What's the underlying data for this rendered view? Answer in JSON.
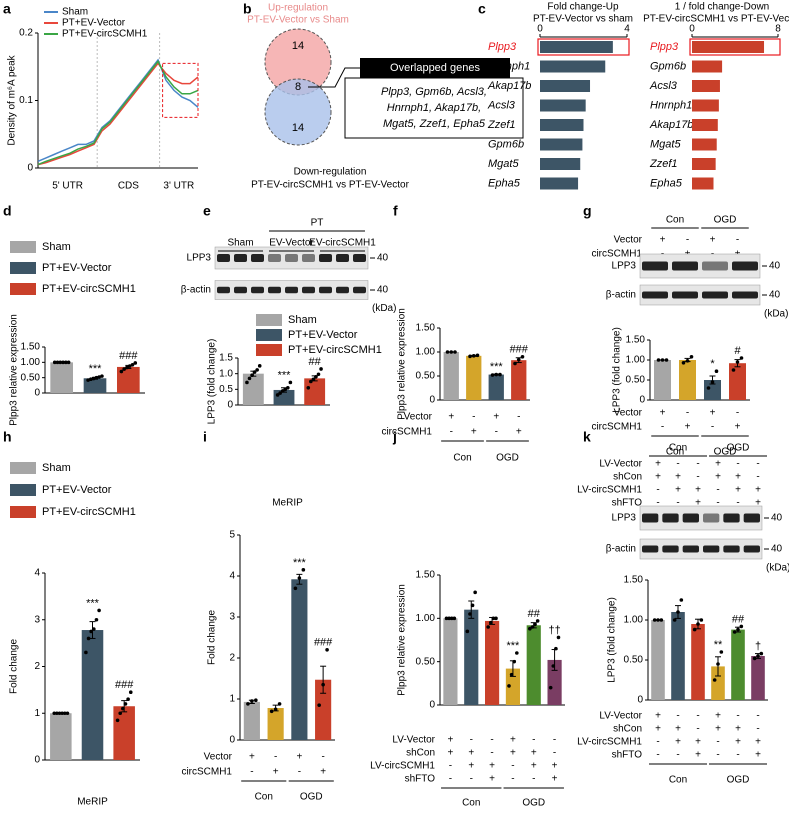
{
  "chart_data": [
    {
      "panel": "a",
      "type": "line",
      "ylabel": "Density of m⁶A peak",
      "regions": [
        "5' UTR",
        "CDS",
        "3' UTR"
      ],
      "ylim": [
        0,
        0.2
      ],
      "yticks": [
        0,
        0.1,
        0.2
      ],
      "legend": "upper left",
      "series": [
        {
          "name": "Sham",
          "color": "#4a86c8",
          "values": [
            0.01,
            0.015,
            0.02,
            0.025,
            0.03,
            0.035,
            0.035,
            0.04,
            0.06,
            0.07,
            0.085,
            0.1,
            0.115,
            0.13,
            0.145,
            0.16,
            0.13,
            0.115,
            0.105,
            0.1,
            0.09
          ]
        },
        {
          "name": "PT+EV-Vector",
          "color": "#e8473c",
          "values": [
            0.005,
            0.008,
            0.012,
            0.016,
            0.02,
            0.025,
            0.03,
            0.035,
            0.055,
            0.065,
            0.08,
            0.095,
            0.11,
            0.125,
            0.14,
            0.155,
            0.14,
            0.13,
            0.125,
            0.125,
            0.135
          ]
        },
        {
          "name": "PT+EV-circSCMH1",
          "color": "#3aa645",
          "values": [
            0.005,
            0.01,
            0.014,
            0.018,
            0.022,
            0.028,
            0.032,
            0.037,
            0.058,
            0.068,
            0.083,
            0.098,
            0.113,
            0.128,
            0.143,
            0.158,
            0.135,
            0.12,
            0.11,
            0.11,
            0.115
          ]
        }
      ]
    },
    {
      "panel": "b",
      "type": "venn",
      "sets": [
        {
          "title": "Up-regulation",
          "subtitle": "PT-EV-Vector vs Sham",
          "color": "#f4a4a4",
          "count": 14
        },
        {
          "title": "Down-regulation",
          "subtitle": "PT-EV-circSCMH1 vs PT-EV-Vector",
          "color": "#a9c0ea",
          "count": 14
        }
      ],
      "overlap": 8,
      "box_title": "Overlapped genes",
      "box_lines": [
        "Plpp3, Gpm6b, Acsl3,",
        "Hnrnph1, Akap17b,",
        "Mgat5, Zzef1, Epha5"
      ]
    },
    {
      "panel": "c",
      "type": "hbar",
      "title": "Fold change-Up",
      "subtitle": "PT-EV-Vector vs sham",
      "categories": [
        "Plpp3",
        "Hnrnph1",
        "Akap17b",
        "Acsl3",
        "Zzef1",
        "Gpm6b",
        "Mgat5",
        "Epha5"
      ],
      "values": [
        3.35,
        3.0,
        2.3,
        2.1,
        2.0,
        1.95,
        1.85,
        1.75
      ],
      "color": "#3d5566",
      "xlim": [
        0,
        4
      ],
      "xticks": [
        0,
        4
      ],
      "highlight_index": 0,
      "highlight_color": "#e8191e"
    },
    {
      "type": "hbar",
      "title": "1 / fold change-Down",
      "subtitle": "PT-EV-circSCMH1 vs PT-EV-Vector",
      "categories": [
        "Plpp3",
        "Gpm6b",
        "Acsl3",
        "Hnrnph1",
        "Akap17b",
        "Mgat5",
        "Zzef1",
        "Epha5"
      ],
      "values": [
        6.7,
        2.8,
        2.6,
        2.5,
        2.4,
        2.3,
        2.2,
        2.0
      ],
      "color": "#c9402a",
      "xlim": [
        0,
        8
      ],
      "xticks": [
        0,
        8
      ],
      "highlight_index": 0,
      "highlight_color": "#e8191e"
    },
    {
      "panel": "d",
      "type": "bar",
      "ylabel": "Plpp3 relative expression",
      "ylim": [
        0,
        1.5
      ],
      "yticks": [
        0,
        {
          "value": 0.5,
          "label": "0.50"
        },
        {
          "value": 1,
          "label": "1.00"
        },
        {
          "value": 1.5,
          "label": "1.50"
        }
      ],
      "series": [
        {
          "name": "Sham",
          "color": "#a6a6a6",
          "values": [
            1.0
          ],
          "errors": [
            0
          ],
          "points": [
            [
              1,
              1,
              1,
              1,
              1,
              1
            ]
          ],
          "annotations": [
            null
          ]
        },
        {
          "name": "PT+EV-Vector",
          "color": "#3d5566",
          "values": [
            0.48
          ],
          "errors": [
            0.03
          ],
          "points": [
            [
              0.42,
              0.45,
              0.47,
              0.5,
              0.52,
              0.55
            ]
          ],
          "annotations": [
            "***"
          ]
        },
        {
          "name": "PT+EV-circSCMH1",
          "color": "#c9402a",
          "values": [
            0.85
          ],
          "errors": [
            0.05
          ],
          "points": [
            [
              0.7,
              0.78,
              0.83,
              0.88,
              0.92,
              0.98
            ]
          ],
          "annotations": [
            "###"
          ]
        }
      ]
    },
    {
      "panel": "e",
      "type": "bar",
      "ylabel": "LPP3 (fold change)",
      "ylim": [
        0,
        1.5
      ],
      "yticks": [
        0,
        0.5,
        {
          "value": 1,
          "label": "1.0"
        },
        1.5
      ],
      "blot": {
        "rows": [
          "LPP3",
          "β-actin"
        ],
        "marker": 40,
        "unit": "(kDa)",
        "lanes": [
          "Sham",
          "EV-Vector",
          "EV-circSCMH1"
        ],
        "lane_group": "PT"
      },
      "series": [
        {
          "name": "Sham",
          "color": "#a6a6a6",
          "values": [
            1.0
          ],
          "errors": [
            0.08
          ],
          "points": [
            [
              0.72,
              0.85,
              0.95,
              1.05,
              1.12,
              1.25
            ]
          ],
          "annotations": [
            null
          ]
        },
        {
          "name": "PT+EV-Vector",
          "color": "#3d5566",
          "values": [
            0.48
          ],
          "errors": [
            0.07
          ],
          "points": [
            [
              0.32,
              0.38,
              0.45,
              0.5,
              0.55,
              0.72
            ]
          ],
          "annotations": [
            "***"
          ]
        },
        {
          "name": "PT+EV-circSCMH1",
          "color": "#c9402a",
          "values": [
            0.85
          ],
          "errors": [
            0.08
          ],
          "points": [
            [
              0.55,
              0.75,
              0.82,
              0.9,
              0.98,
              1.15
            ]
          ],
          "annotations": [
            "##"
          ]
        }
      ]
    },
    {
      "panel": "f",
      "type": "bar",
      "ylabel": "Plpp3 relative expression",
      "ylim": [
        0,
        1.5
      ],
      "yticks": [
        0,
        {
          "value": 0.5,
          "label": "0.50"
        },
        {
          "value": 1,
          "label": "1.00"
        },
        {
          "value": 1.5,
          "label": "1.50"
        }
      ],
      "values": [
        1.0,
        0.92,
        0.53,
        0.83
      ],
      "errors": [
        0,
        0.01,
        0.01,
        0.05
      ],
      "colors": [
        "#a6a6a6",
        "#d4a52a",
        "#3d5566",
        "#c9402a"
      ],
      "points": [
        [
          1,
          1,
          1
        ],
        [
          0.91,
          0.92,
          0.93
        ],
        [
          0.52,
          0.53,
          0.53
        ],
        [
          0.76,
          0.84,
          0.9
        ]
      ],
      "annotations": [
        null,
        null,
        "***",
        "###"
      ],
      "conditions": [
        {
          "label": "Vector",
          "marks": [
            "+",
            "-",
            "+",
            "-"
          ]
        },
        {
          "label": "circSCMH1",
          "marks": [
            "-",
            "+",
            "-",
            "+"
          ]
        }
      ],
      "groups": [
        "Con",
        "OGD"
      ]
    },
    {
      "panel": "g",
      "type": "bar",
      "ylabel": "LPP3 (fold change)",
      "ylim": [
        0,
        1.5
      ],
      "yticks": [
        0,
        {
          "value": 0.5,
          "label": "0.50"
        },
        {
          "value": 1,
          "label": "1.00"
        },
        {
          "value": 1.5,
          "label": "1.50"
        }
      ],
      "blot": {
        "rows": [
          "LPP3",
          "β-actin"
        ],
        "marker": 40,
        "unit": "(kDa)"
      },
      "values": [
        1.0,
        1.0,
        0.5,
        0.92
      ],
      "errors": [
        0,
        0.04,
        0.1,
        0.09
      ],
      "colors": [
        "#a6a6a6",
        "#d4a52a",
        "#3d5566",
        "#c9402a"
      ],
      "points": [
        [
          1,
          1,
          1
        ],
        [
          0.93,
          0.98,
          1.08
        ],
        [
          0.3,
          0.45,
          0.72
        ],
        [
          0.75,
          0.95,
          1.05
        ]
      ],
      "annotations": [
        null,
        null,
        "*",
        "#"
      ],
      "conditions": [
        {
          "label": "Vector",
          "marks": [
            "+",
            "-",
            "+",
            "-"
          ]
        },
        {
          "label": "circSCMH1",
          "marks": [
            "-",
            "+",
            "-",
            "+"
          ]
        }
      ],
      "groups": [
        "Con",
        "OGD"
      ]
    },
    {
      "panel": "h",
      "type": "bar",
      "ylabel": "Fold change",
      "xlabel": "MeRIP",
      "ylim": [
        0,
        4
      ],
      "yticks": [
        0,
        1,
        2,
        3,
        4
      ],
      "series": [
        {
          "name": "Sham",
          "color": "#a6a6a6",
          "values": [
            1.0
          ],
          "errors": [
            0
          ],
          "points": [
            [
              1,
              1,
              1,
              1,
              1,
              1
            ]
          ],
          "annotations": [
            null
          ]
        },
        {
          "name": "PT+EV-Vector",
          "color": "#3d5566",
          "values": [
            2.78
          ],
          "errors": [
            0.18
          ],
          "points": [
            [
              2.3,
              2.6,
              2.75,
              2.8,
              3.0,
              3.2
            ]
          ],
          "annotations": [
            "***"
          ]
        },
        {
          "name": "PT+EV-circSCMH1",
          "color": "#c9402a",
          "values": [
            1.15
          ],
          "errors": [
            0.12
          ],
          "points": [
            [
              0.85,
              1.0,
              1.1,
              1.2,
              1.3,
              1.45
            ]
          ],
          "annotations": [
            "###"
          ]
        }
      ]
    },
    {
      "panel": "i",
      "type": "bar",
      "title": "MeRIP",
      "ylabel": "Fold change",
      "ylim": [
        0,
        5
      ],
      "yticks": [
        0,
        1,
        2,
        3,
        4,
        5
      ],
      "values": [
        0.93,
        0.78,
        3.92,
        1.47
      ],
      "errors": [
        0.04,
        0.07,
        0.12,
        0.33
      ],
      "colors": [
        "#a6a6a6",
        "#d4a52a",
        "#3d5566",
        "#c9402a"
      ],
      "points": [
        [
          0.88,
          0.95,
          0.97
        ],
        [
          0.7,
          0.75,
          0.88
        ],
        [
          3.7,
          3.95,
          4.15
        ],
        [
          0.85,
          1.35,
          2.2
        ]
      ],
      "annotations": [
        null,
        null,
        "***",
        "###"
      ],
      "conditions": [
        {
          "label": "Vector",
          "marks": [
            "+",
            "-",
            "+",
            "-"
          ]
        },
        {
          "label": "circSCMH1",
          "marks": [
            "-",
            "+",
            "-",
            "+"
          ]
        }
      ],
      "groups": [
        "Con",
        "OGD"
      ]
    },
    {
      "panel": "j",
      "type": "bar",
      "ylabel": "Plpp3 relative expression",
      "ylim": [
        0,
        1.5
      ],
      "yticks": [
        0,
        {
          "value": 0.5,
          "label": "0.50"
        },
        {
          "value": 1,
          "label": "1.00"
        },
        {
          "value": 1.5,
          "label": "1.50"
        }
      ],
      "values": [
        1.0,
        1.1,
        0.97,
        0.42,
        0.92,
        0.52
      ],
      "errors": [
        0,
        0.1,
        0.04,
        0.09,
        0.03,
        0.12
      ],
      "colors": [
        "#a6a6a6",
        "#3d5566",
        "#c9402a",
        "#d4a52a",
        "#4d8c2e",
        "#7a3d63"
      ],
      "points": [
        [
          1,
          1,
          1,
          1
        ],
        [
          0.85,
          1.05,
          1.15,
          1.3
        ],
        [
          0.9,
          0.95,
          1.0,
          1.0
        ],
        [
          0.22,
          0.35,
          0.5,
          0.6
        ],
        [
          0.88,
          0.9,
          0.93,
          0.97
        ],
        [
          0.2,
          0.45,
          0.65,
          0.78
        ]
      ],
      "annotations": [
        null,
        null,
        null,
        "***",
        "##",
        "††"
      ],
      "conditions": [
        {
          "label": "LV-Vector",
          "marks": [
            "+",
            "-",
            "-",
            "+",
            "-",
            "-"
          ]
        },
        {
          "label": "shCon",
          "marks": [
            "+",
            "+",
            "-",
            "+",
            "+",
            "-"
          ]
        },
        {
          "label": "LV-circSCMH1",
          "marks": [
            "-",
            "+",
            "+",
            "-",
            "+",
            "+"
          ]
        },
        {
          "label": "shFTO",
          "marks": [
            "-",
            "-",
            "+",
            "-",
            "-",
            "+"
          ]
        }
      ],
      "groups": [
        "Con",
        "OGD"
      ]
    },
    {
      "panel": "k",
      "type": "bar",
      "ylabel": "LPP3 (fold change)",
      "ylim": [
        0,
        1.5
      ],
      "yticks": [
        0,
        {
          "value": 0.5,
          "label": "0.50"
        },
        {
          "value": 1,
          "label": "1.00"
        },
        {
          "value": 1.5,
          "label": "1.50"
        }
      ],
      "blot": {
        "rows": [
          "LPP3",
          "β-actin"
        ],
        "marker": 40,
        "unit": "(kDa)"
      },
      "values": [
        1.0,
        1.1,
        0.95,
        0.42,
        0.88,
        0.55
      ],
      "errors": [
        0,
        0.08,
        0.06,
        0.12,
        0.03,
        0.03
      ],
      "colors": [
        "#a6a6a6",
        "#3d5566",
        "#c9402a",
        "#d4a52a",
        "#4d8c2e",
        "#7a3d63"
      ],
      "points": [
        [
          1,
          1,
          1
        ],
        [
          1.0,
          1.1,
          1.25
        ],
        [
          0.88,
          0.95,
          1.0
        ],
        [
          0.25,
          0.45,
          0.6
        ],
        [
          0.85,
          0.88,
          0.92
        ],
        [
          0.52,
          0.55,
          0.58
        ]
      ],
      "annotations": [
        null,
        null,
        null,
        "**",
        "##",
        "†"
      ],
      "conditions": [
        {
          "label": "LV-Vector",
          "marks": [
            "+",
            "-",
            "-",
            "+",
            "-",
            "-"
          ]
        },
        {
          "label": "shCon",
          "marks": [
            "+",
            "+",
            "-",
            "+",
            "+",
            "-"
          ]
        },
        {
          "label": "LV-circSCMH1",
          "marks": [
            "-",
            "+",
            "+",
            "-",
            "+",
            "+"
          ]
        },
        {
          "label": "shFTO",
          "marks": [
            "-",
            "-",
            "+",
            "-",
            "-",
            "+"
          ]
        }
      ],
      "groups": [
        "Con",
        "OGD"
      ]
    }
  ]
}
